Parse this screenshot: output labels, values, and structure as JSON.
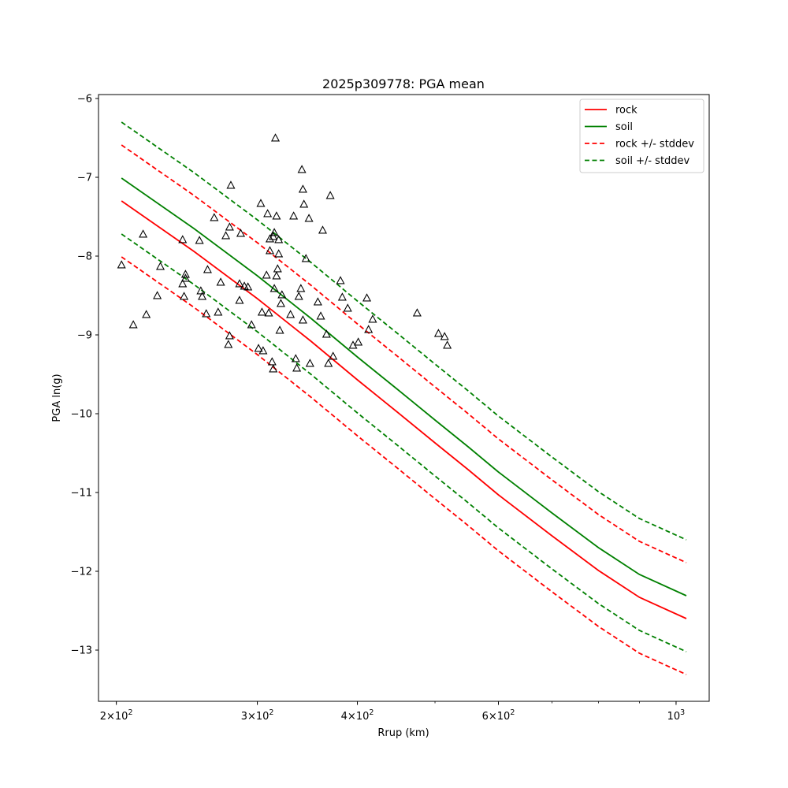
{
  "chart_data": {
    "type": "scatter",
    "title": "2025p309778: PGA mean",
    "xlabel": "Rrup (km)",
    "ylabel": "PGA ln(g)",
    "x_scale": "log",
    "xlim": [
      190,
      1100
    ],
    "ylim": [
      -13.65,
      -5.95
    ],
    "x_ticks": [
      {
        "value": 200,
        "base": "2×10",
        "exp": "2"
      },
      {
        "value": 300,
        "base": "3×10",
        "exp": "2"
      },
      {
        "value": 400,
        "base": "4×10",
        "exp": "2"
      },
      {
        "value": 600,
        "base": "6×10",
        "exp": "2"
      },
      {
        "value": 1000,
        "base": "10",
        "exp": "3"
      }
    ],
    "y_ticks": [
      {
        "value": -6,
        "label": "−6"
      },
      {
        "value": -7,
        "label": "−7"
      },
      {
        "value": -8,
        "label": "−8"
      },
      {
        "value": -9,
        "label": "−9"
      },
      {
        "value": -10,
        "label": "−10"
      },
      {
        "value": -11,
        "label": "−11"
      },
      {
        "value": -12,
        "label": "−12"
      },
      {
        "value": -13,
        "label": "−13"
      }
    ],
    "grid": false,
    "legend_position": "top-right",
    "series": [
      {
        "name": "rock",
        "color": "#ff0000",
        "dashed": false,
        "x": [
          203,
          250,
          300,
          350,
          400,
          450,
          500,
          550,
          600,
          700,
          800,
          900,
          1030
        ],
        "y": [
          -7.3,
          -7.94,
          -8.54,
          -9.08,
          -9.57,
          -9.99,
          -10.37,
          -10.71,
          -11.03,
          -11.55,
          -11.99,
          -12.33,
          -12.6
        ]
      },
      {
        "name": "soil",
        "color": "#008000",
        "dashed": false,
        "x": [
          203,
          250,
          300,
          350,
          400,
          450,
          500,
          550,
          600,
          700,
          800,
          900,
          1030
        ],
        "y": [
          -7.01,
          -7.65,
          -8.25,
          -8.79,
          -9.28,
          -9.7,
          -10.08,
          -10.42,
          -10.74,
          -11.26,
          -11.7,
          -12.04,
          -12.31
        ]
      },
      {
        "name": "rock +/- stddev",
        "color": "#ff0000",
        "dashed": true,
        "x": [
          203,
          250,
          300,
          350,
          400,
          450,
          500,
          550,
          600,
          700,
          800,
          900,
          1030
        ],
        "y": [
          -6.59,
          -7.23,
          -7.83,
          -8.37,
          -8.86,
          -9.28,
          -9.66,
          -10.0,
          -10.32,
          -10.84,
          -11.28,
          -11.62,
          -11.89
        ]
      },
      {
        "name": "",
        "color": "#ff0000",
        "dashed": true,
        "x": [
          203,
          250,
          300,
          350,
          400,
          450,
          500,
          550,
          600,
          700,
          800,
          900,
          1030
        ],
        "y": [
          -8.01,
          -8.65,
          -9.25,
          -9.79,
          -10.28,
          -10.7,
          -11.08,
          -11.42,
          -11.74,
          -12.26,
          -12.7,
          -13.04,
          -13.31
        ]
      },
      {
        "name": "soil +/- stddev",
        "color": "#008000",
        "dashed": true,
        "x": [
          203,
          250,
          300,
          350,
          400,
          450,
          500,
          550,
          600,
          700,
          800,
          900,
          1030
        ],
        "y": [
          -6.3,
          -6.94,
          -7.54,
          -8.08,
          -8.57,
          -8.99,
          -9.37,
          -9.71,
          -10.03,
          -10.55,
          -10.99,
          -11.33,
          -11.6
        ]
      },
      {
        "name": "",
        "color": "#008000",
        "dashed": true,
        "x": [
          203,
          250,
          300,
          350,
          400,
          450,
          500,
          550,
          600,
          700,
          800,
          900,
          1030
        ],
        "y": [
          -7.72,
          -8.36,
          -8.96,
          -9.5,
          -9.99,
          -10.41,
          -10.79,
          -11.13,
          -11.45,
          -11.97,
          -12.41,
          -12.75,
          -13.02
        ]
      }
    ],
    "observations": {
      "marker": "triangle",
      "x": [
        203,
        210,
        216,
        218,
        225,
        227,
        242,
        242,
        243,
        244,
        244,
        254,
        255,
        256,
        259,
        260,
        265,
        268,
        270,
        274,
        276,
        277,
        277,
        278,
        285,
        285,
        286,
        289,
        292,
        295,
        301,
        303,
        304,
        305,
        308,
        309,
        310,
        311,
        311,
        313,
        314,
        314,
        315,
        315,
        316,
        317,
        317,
        318,
        319,
        319,
        320,
        321,
        322,
        330,
        333,
        335,
        336,
        338,
        340,
        341,
        342,
        342,
        343,
        345,
        348,
        349,
        357,
        360,
        362,
        366,
        368,
        370,
        373,
        381,
        383,
        389,
        395,
        401,
        411,
        413,
        418,
        475,
        505,
        514,
        518
      ],
      "y": [
        -8.11,
        -8.87,
        -7.72,
        -8.74,
        -8.5,
        -8.13,
        -7.79,
        -8.35,
        -8.51,
        -8.23,
        -8.28,
        -7.8,
        -8.44,
        -8.51,
        -8.73,
        -8.17,
        -7.51,
        -8.71,
        -8.33,
        -7.74,
        -9.12,
        -7.63,
        -9.01,
        -7.1,
        -8.35,
        -8.56,
        -7.71,
        -8.38,
        -8.39,
        -8.87,
        -9.17,
        -7.33,
        -8.71,
        -9.2,
        -8.24,
        -7.46,
        -8.72,
        -7.93,
        -7.78,
        -9.34,
        -7.75,
        -9.43,
        -7.7,
        -8.41,
        -6.5,
        -7.49,
        -8.25,
        -8.16,
        -7.79,
        -7.97,
        -8.94,
        -8.6,
        -8.49,
        -8.74,
        -7.49,
        -9.3,
        -9.42,
        -8.51,
        -8.41,
        -6.9,
        -7.15,
        -8.81,
        -7.34,
        -8.03,
        -7.52,
        -9.36,
        -8.58,
        -8.76,
        -7.67,
        -8.99,
        -9.36,
        -7.23,
        -9.27,
        -8.31,
        -8.52,
        -8.66,
        -9.13,
        -9.09,
        -8.53,
        -8.93,
        -8.8,
        -8.72,
        -8.98,
        -9.02,
        -9.13
      ]
    }
  }
}
